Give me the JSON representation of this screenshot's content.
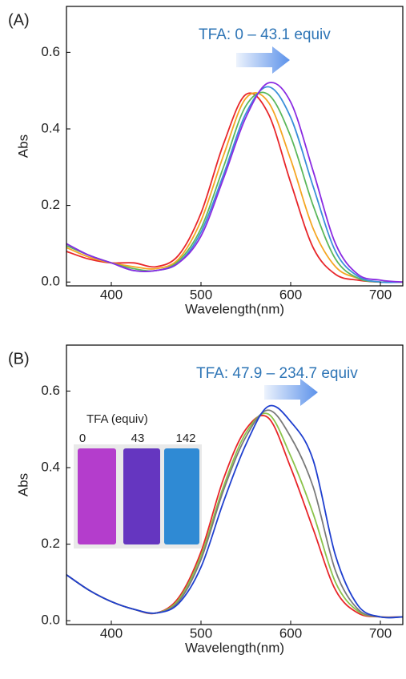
{
  "chart_data": [
    {
      "type": "line",
      "panel_label": "(A)",
      "annotation": "TFA: 0 – 43.1 equiv",
      "xlabel": "Wavelength(nm)",
      "ylabel": "Abs",
      "x": [
        350,
        375,
        400,
        425,
        450,
        475,
        500,
        525,
        550,
        575,
        600,
        625,
        650,
        675,
        700,
        725
      ],
      "series": [
        {
          "color": "#e8262a",
          "values": [
            0.08,
            0.06,
            0.05,
            0.05,
            0.04,
            0.07,
            0.18,
            0.36,
            0.49,
            0.44,
            0.26,
            0.09,
            0.02,
            0.005,
            0,
            0
          ]
        },
        {
          "color": "#f5a623",
          "values": [
            0.09,
            0.065,
            0.05,
            0.04,
            0.035,
            0.06,
            0.16,
            0.33,
            0.48,
            0.47,
            0.32,
            0.14,
            0.04,
            0.01,
            0,
            0
          ]
        },
        {
          "color": "#5cb85c",
          "values": [
            0.095,
            0.07,
            0.05,
            0.035,
            0.03,
            0.055,
            0.14,
            0.3,
            0.46,
            0.49,
            0.38,
            0.2,
            0.06,
            0.01,
            0,
            0
          ]
        },
        {
          "color": "#3a8fd9",
          "values": [
            0.1,
            0.07,
            0.05,
            0.03,
            0.03,
            0.05,
            0.13,
            0.28,
            0.44,
            0.51,
            0.43,
            0.25,
            0.08,
            0.015,
            0,
            0
          ]
        },
        {
          "color": "#8a2be2",
          "values": [
            0.1,
            0.07,
            0.05,
            0.03,
            0.03,
            0.05,
            0.12,
            0.27,
            0.43,
            0.52,
            0.47,
            0.29,
            0.1,
            0.02,
            0.005,
            0
          ]
        }
      ],
      "xlim": [
        350,
        725
      ],
      "xticks": [
        400,
        500,
        600,
        700
      ],
      "ylim": [
        -0.01,
        0.72
      ],
      "yticks": [
        {
          "value": 0,
          "label": "0.0"
        },
        0.2,
        0.4,
        0.6
      ]
    },
    {
      "type": "line",
      "panel_label": "(B)",
      "annotation": "TFA: 47.9 – 234.7 equiv",
      "xlabel": "Wavelength(nm)",
      "ylabel": "Abs",
      "inset": {
        "title": "TFA (equiv)",
        "labels": [
          "0",
          "43",
          "142"
        ]
      },
      "x": [
        350,
        375,
        400,
        425,
        450,
        475,
        500,
        525,
        550,
        575,
        600,
        625,
        650,
        675,
        700,
        725
      ],
      "series": [
        {
          "color": "#e8262a",
          "values": [
            0.12,
            0.08,
            0.05,
            0.03,
            0.02,
            0.06,
            0.18,
            0.37,
            0.5,
            0.53,
            0.4,
            0.24,
            0.08,
            0.02,
            0.01,
            0.01
          ]
        },
        {
          "color": "#8bc34a",
          "values": [
            0.12,
            0.08,
            0.05,
            0.03,
            0.02,
            0.055,
            0.17,
            0.35,
            0.49,
            0.54,
            0.43,
            0.28,
            0.1,
            0.025,
            0.01,
            0.01
          ]
        },
        {
          "color": "#7a7a7a",
          "values": [
            0.12,
            0.08,
            0.05,
            0.03,
            0.02,
            0.05,
            0.16,
            0.34,
            0.48,
            0.55,
            0.48,
            0.35,
            0.13,
            0.03,
            0.01,
            0.01
          ]
        },
        {
          "color": "#1f3fcf",
          "values": [
            0.12,
            0.08,
            0.05,
            0.03,
            0.02,
            0.045,
            0.14,
            0.31,
            0.46,
            0.56,
            0.52,
            0.42,
            0.17,
            0.04,
            0.01,
            0.01
          ]
        }
      ],
      "xlim": [
        350,
        725
      ],
      "xticks": [
        400,
        500,
        600,
        700
      ],
      "ylim": [
        -0.01,
        0.72
      ],
      "yticks": [
        {
          "value": 0,
          "label": "0.0"
        },
        0.2,
        0.4,
        0.6
      ]
    }
  ]
}
